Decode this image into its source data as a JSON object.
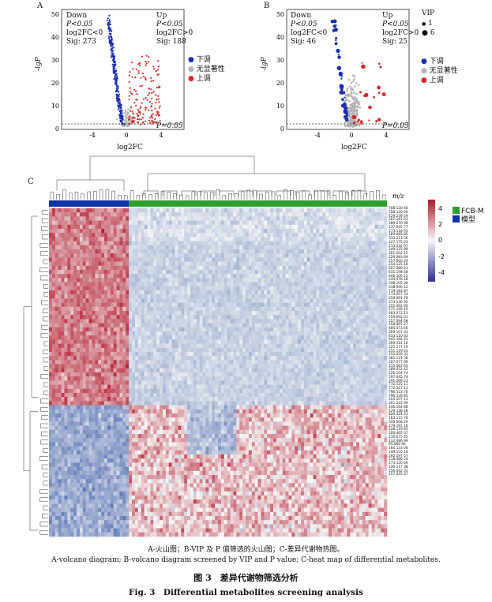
{
  "panels": {
    "A": {
      "letter": "A",
      "down": {
        "lines": [
          "Down",
          "P<0.05",
          "log2FC<0",
          "Sig: 273"
        ]
      },
      "up": {
        "lines": [
          "Up",
          "P<0.05",
          "log2FC>0",
          "Sig: 188"
        ]
      },
      "y_axis_label": "-lgP",
      "x_axis_label": "log2FC",
      "p_label": "P=0.05",
      "legend": [
        {
          "label": "下调",
          "color": "#1a2fb0"
        },
        {
          "label": "无显著性",
          "color": "#b3b3b3"
        },
        {
          "label": "上调",
          "color": "#d42a2a"
        }
      ],
      "y_ticks": [
        "0",
        "10",
        "20",
        "30",
        "40",
        "50"
      ],
      "x_ticks": [
        "-4",
        "0",
        "4"
      ]
    },
    "B": {
      "letter": "B",
      "down": {
        "lines": [
          "Down",
          "P<0.05",
          "log2FC<0",
          "Sig: 46"
        ]
      },
      "up": {
        "lines": [
          "Up",
          "P<0.05",
          "log2FC>0",
          "Sig: 25"
        ]
      },
      "y_axis_label": "-lgP",
      "x_axis_label": "log2FC",
      "p_label": "P=0.05",
      "vip_title": "VIP",
      "vip_sizes": [
        "1",
        "6"
      ],
      "legend": [
        {
          "label": "下调",
          "color": "#1a2fb0"
        },
        {
          "label": "无显著性",
          "color": "#b3b3b3"
        },
        {
          "label": "上调",
          "color": "#d42a2a"
        }
      ],
      "y_ticks": [
        "0",
        "10",
        "20",
        "30",
        "40",
        "50"
      ],
      "x_ticks": [
        "-4",
        "0",
        "4"
      ]
    },
    "C": {
      "letter": "C",
      "mz_title": "m/z",
      "scale_ticks": [
        "4",
        "2",
        "0",
        "-2",
        "-4"
      ],
      "groups": [
        {
          "label": "FCB-M",
          "color": "#2e9e2e"
        },
        {
          "label": "模型",
          "color": "#1230a8"
        }
      ],
      "mz_labels": [
        "708.120 66",
        "708.120 60",
        "429.239 59",
        "287.161 63",
        "189.070 98",
        "137.045 77",
        "173.118 91",
        "169.085 85",
        "313.213 56",
        "327.175 03",
        "213.032 07",
        "249.125 98",
        "261.052 15",
        "226.083 69",
        "257.060 29",
        "254.125 18",
        "267.089 21",
        "635.198 68",
        "646.106 12",
        "244.076 18",
        "348.105 38",
        "318.090 12",
        "719.183 87",
        "173.057 54",
        "258.091 78",
        "373.136 95",
        "255.062 90",
        "571.146 19",
        "483.072 13",
        "559.092 61",
        "557.094 68",
        "558.095 27",
        "486.073 66",
        "269.107 33",
        "633.110 83",
        "645.164 41",
        "269.114 16",
        "325.177 19",
        "251.119 63",
        "155.059 31",
        "362.121 58",
        "207.077 99",
        "315.083 61",
        "189.052 42",
        "226.104 74",
        "597.045 74",
        "291.069 23",
        "772.525 11",
        "772.527 11",
        "796.523 76",
        "796.539 85",
        "104.107 11",
        "201.222 99",
        "146.164 88",
        "129.138 48",
        "820.524 23",
        "163.115 78",
        "340.068 29",
        "279.191 16",
        "228.119 83",
        "206.065 37",
        "216.075 45",
        "112.086 99",
        "95.060 66",
        "160.133 08",
        "249.155 18",
        "292.197 57",
        "118.086 24",
        "273.120 69",
        "146.117 38",
        "156.042 01",
        "157.045 47"
      ]
    }
  },
  "captions": {
    "line_zh": "A-火山图；B-VIP 及 P 值筛选的火山图；C-差异代谢物热图。",
    "line_en": "A-volcano diagram; B-volcano diagram screened by VIP and P value; C-heat map of differential metabolites.",
    "fig_zh": "图 3　差异代谢物筛选分析",
    "fig_en": "Fig. 3　Differential metabolites screening analysis"
  }
}
